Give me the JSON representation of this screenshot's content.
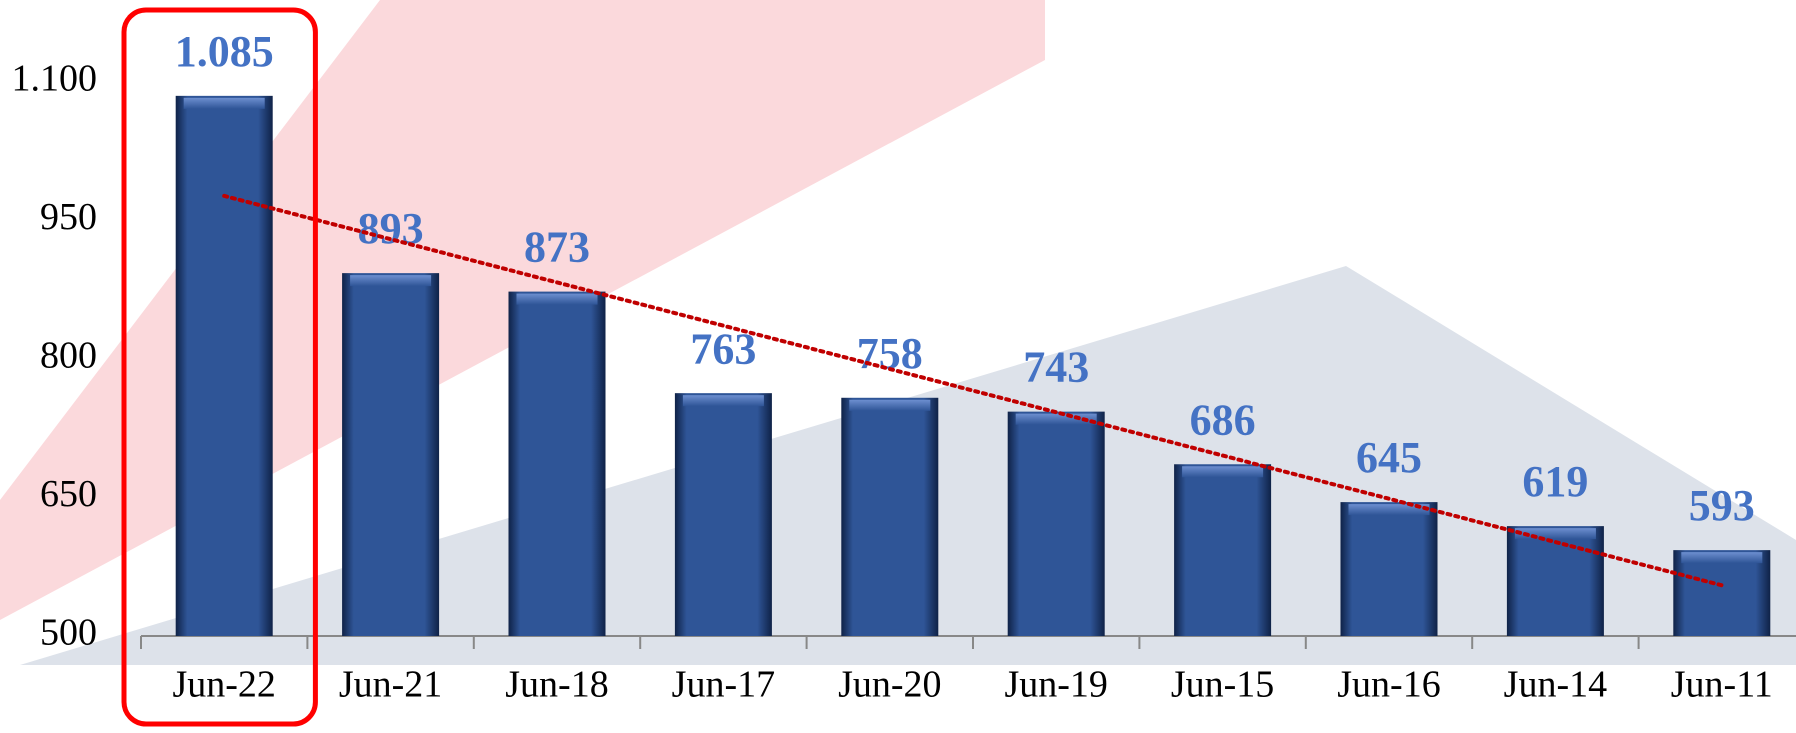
{
  "chart_data": {
    "type": "bar",
    "categories": [
      "Jun-22",
      "Jun-21",
      "Jun-18",
      "Jun-17",
      "Jun-20",
      "Jun-19",
      "Jun-15",
      "Jun-16",
      "Jun-14",
      "Jun-11"
    ],
    "values": [
      1085,
      893,
      873,
      763,
      758,
      743,
      686,
      645,
      619,
      593
    ],
    "value_labels": [
      "1.085",
      "893",
      "873",
      "763",
      "758",
      "743",
      "686",
      "645",
      "619",
      "593"
    ],
    "color": "#2f5597",
    "label_color": "#4472c4",
    "ylim": [
      500,
      1100
    ],
    "yticks": [
      500,
      650,
      800,
      950,
      {
        "value": 1100,
        "label": "1.100"
      }
    ],
    "grid": false,
    "trendline": true,
    "trendline_color": "#c00000",
    "highlight_index": 0,
    "highlight_color": "#ff0000"
  }
}
